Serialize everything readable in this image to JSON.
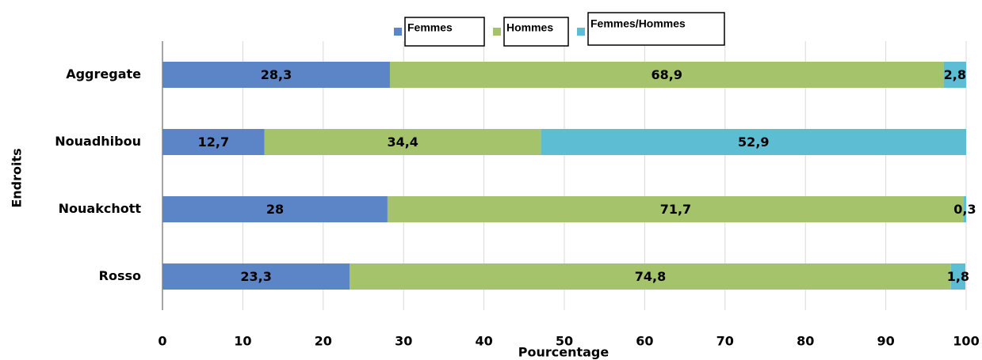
{
  "chart_data": {
    "type": "stacked_barh",
    "categories": [
      "Aggregate",
      "Nouadhibou",
      "Nouakchott",
      "Rosso"
    ],
    "series": [
      {
        "name": "Femmes",
        "color": "#5b85c6",
        "values": [
          28.3,
          12.7,
          28,
          23.3
        ],
        "value_labels": [
          "28,3",
          "12,7",
          "28",
          "23,3"
        ]
      },
      {
        "name": "Hommes",
        "color": "#a4c36a",
        "values": [
          68.9,
          34.4,
          71.7,
          74.8
        ],
        "value_labels": [
          "68,9",
          "34,4",
          "71,7",
          "74,8"
        ]
      },
      {
        "name": "Femmes/Hommes",
        "color": "#5cbdd3",
        "values": [
          2.8,
          52.9,
          0.3,
          1.8
        ],
        "value_labels": [
          "2,8",
          "52,9",
          "0,3",
          "1,8"
        ]
      }
    ],
    "xlabel": "Pourcentage",
    "ylabel": "Endroits",
    "xlim": [
      0,
      100
    ],
    "xticks": [
      0,
      10,
      20,
      30,
      40,
      50,
      60,
      70,
      80,
      90,
      100
    ],
    "grid": true,
    "legend": "top"
  }
}
